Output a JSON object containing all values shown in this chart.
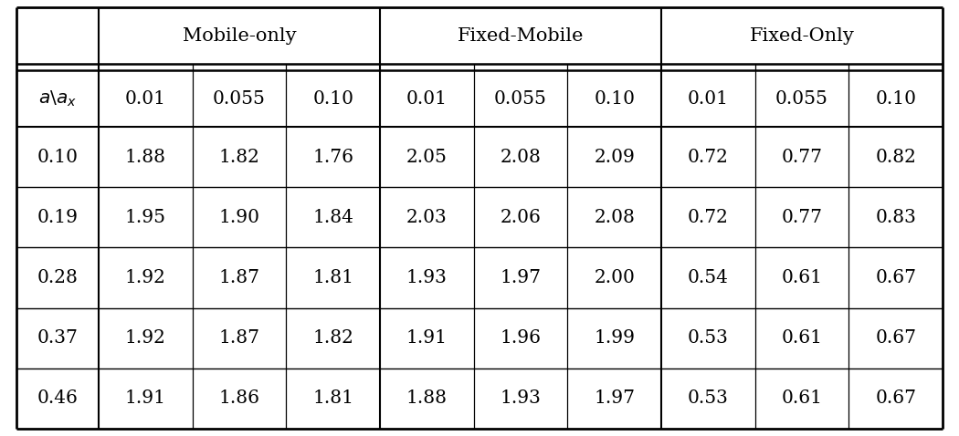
{
  "header_groups": [
    "Mobile-only",
    "Fixed-Mobile",
    "Fixed-Only"
  ],
  "sub_headers": [
    "0.01",
    "0.055",
    "0.10",
    "0.01",
    "0.055",
    "0.10",
    "0.01",
    "0.055",
    "0.10"
  ],
  "row_header_label": "a\\backslash a_x",
  "row_labels": [
    "0.10",
    "0.19",
    "0.28",
    "0.37",
    "0.46"
  ],
  "data": [
    [
      "1.88",
      "1.82",
      "1.76",
      "2.05",
      "2.08",
      "2.09",
      "0.72",
      "0.77",
      "0.82"
    ],
    [
      "1.95",
      "1.90",
      "1.84",
      "2.03",
      "2.06",
      "2.08",
      "0.72",
      "0.77",
      "0.83"
    ],
    [
      "1.92",
      "1.87",
      "1.81",
      "1.93",
      "1.97",
      "2.00",
      "0.54",
      "0.61",
      "0.67"
    ],
    [
      "1.92",
      "1.87",
      "1.82",
      "1.91",
      "1.96",
      "1.99",
      "0.53",
      "0.61",
      "0.67"
    ],
    [
      "1.91",
      "1.86",
      "1.81",
      "1.88",
      "1.93",
      "1.97",
      "0.53",
      "0.61",
      "0.67"
    ]
  ],
  "bg_color": "#ffffff",
  "line_color": "#000000",
  "font_size": 14.5,
  "header_font_size": 15
}
